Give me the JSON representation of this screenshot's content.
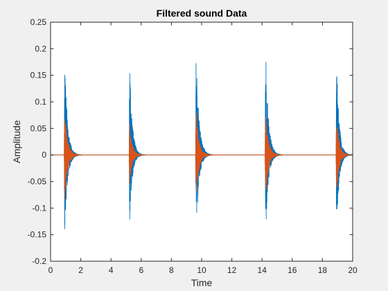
{
  "chart_data": {
    "type": "line",
    "title": "Filtered sound Data",
    "xlabel": "Time",
    "ylabel": "Amplitude",
    "xlim": [
      0,
      20
    ],
    "ylim": [
      -0.2,
      0.25
    ],
    "xticks": [
      0,
      2,
      4,
      6,
      8,
      10,
      12,
      14,
      16,
      18,
      20
    ],
    "yticks": [
      -0.2,
      -0.15,
      -0.1,
      -0.05,
      0,
      0.05,
      0.1,
      0.15,
      0.2,
      0.25
    ],
    "ytick_labels": [
      "-0.2",
      "-0.15",
      "-0.1",
      "-0.05",
      "0",
      "0.05",
      "0.1",
      "0.15",
      "0.2",
      "0.25"
    ],
    "grid": false,
    "legend": "none",
    "colors": {
      "series1": "#0072BD",
      "series2": "#D95319",
      "axes_bg": "#ffffff",
      "figure_bg": "#f0f0f0"
    },
    "series": [
      {
        "color": "#0072BD",
        "bursts": [
          {
            "onset": 0.9,
            "peak_pos": 0.19,
            "peak_neg": -0.155,
            "decay_end": 2.1
          },
          {
            "onset": 5.2,
            "peak_pos": 0.19,
            "peak_neg": -0.135,
            "decay_end": 6.3
          },
          {
            "onset": 9.6,
            "peak_pos": 0.215,
            "peak_neg": -0.155,
            "decay_end": 10.8
          },
          {
            "onset": 14.2,
            "peak_pos": 0.215,
            "peak_neg": -0.155,
            "decay_end": 15.4
          },
          {
            "onset": 18.9,
            "peak_pos": 0.19,
            "peak_neg": -0.155,
            "decay_end": 20.0
          }
        ]
      },
      {
        "color": "#D95319",
        "bursts": [
          {
            "onset": 0.9,
            "peak_pos": 0.09,
            "peak_neg": -0.09,
            "decay_end": 2.1
          },
          {
            "onset": 5.2,
            "peak_pos": 0.06,
            "peak_neg": -0.06,
            "decay_end": 6.3
          },
          {
            "onset": 9.6,
            "peak_pos": 0.085,
            "peak_neg": -0.085,
            "decay_end": 10.8
          },
          {
            "onset": 14.2,
            "peak_pos": 0.085,
            "peak_neg": -0.09,
            "decay_end": 15.4
          },
          {
            "onset": 18.9,
            "peak_pos": 0.075,
            "peak_neg": -0.075,
            "decay_end": 20.0
          }
        ]
      }
    ]
  }
}
